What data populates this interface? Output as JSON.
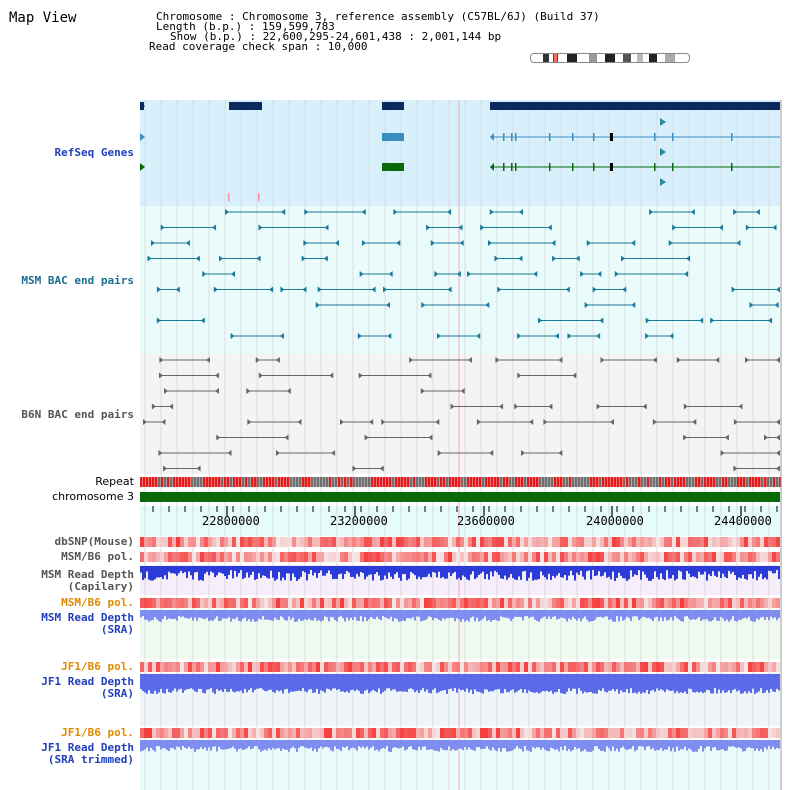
{
  "view_title": "Map View",
  "info": {
    "chromosome_line": "Chromosome   : Chromosome 3, reference assembly (C57BL/6J) (Build 37)",
    "length_line": "Length (b.p.) : 159,599,783",
    "show_line": "Show (b.p.) : 22,600,295-24,601,438 : 2,001,144 bp",
    "coverage_line": "Read coverage check span : 10,000"
  },
  "tracks": {
    "refseq": "RefSeq Genes",
    "msm_bac": "MSM BAC end pairs",
    "b6n_bac": "B6N BAC end pairs",
    "repeat": "Repeat",
    "chromosome": "chromosome 3",
    "dbsnp": "dbSNP(Mouse)",
    "msm_b6_pol": "MSM/B6 pol.",
    "msm_read_depth_cap_1": "MSM Read Depth",
    "msm_read_depth_cap_2": "(Capilary)",
    "msm_b6_pol2": "MSM/B6 pol.",
    "msm_read_depth_sra_1": "MSM Read Depth",
    "msm_read_depth_sra_2": "(SRA)",
    "jf1_b6_pol": "JF1/B6 pol.",
    "jf1_read_depth_sra_1": "JF1 Read Depth",
    "jf1_read_depth_sra_2": "(SRA)",
    "jf1_b6_pol2": "JF1/B6 pol.",
    "jf1_read_depth_trim_1": "JF1 Read Depth",
    "jf1_read_depth_trim_2": "(SRA trimmed)"
  },
  "positions": [
    "22800000",
    "23200000",
    "23600000",
    "24000000",
    "24400000"
  ],
  "colors": {
    "refseq_bg": "#d8f0fb",
    "msm_bg": "#eafbfb",
    "b6n_bg": "#f2f2f2",
    "ruler_bg": "#e6fbfb",
    "gene_dark": "#0a2a5e",
    "gene_mid": "#3a8fc0",
    "gene_green": "#0a6a0a",
    "msm_color": "#1a7a9a",
    "b6n_color": "#666666",
    "chrom": "#0a6a0a",
    "repeat_red": "#e41a1a",
    "depth_blue": "#2b3bd8",
    "depth_light": "#7f8cf0",
    "label_blue": "#1f3fbf",
    "label_orange": "#e08a00",
    "label_teal": "#1a6f8f",
    "label_gray": "#555555"
  }
}
